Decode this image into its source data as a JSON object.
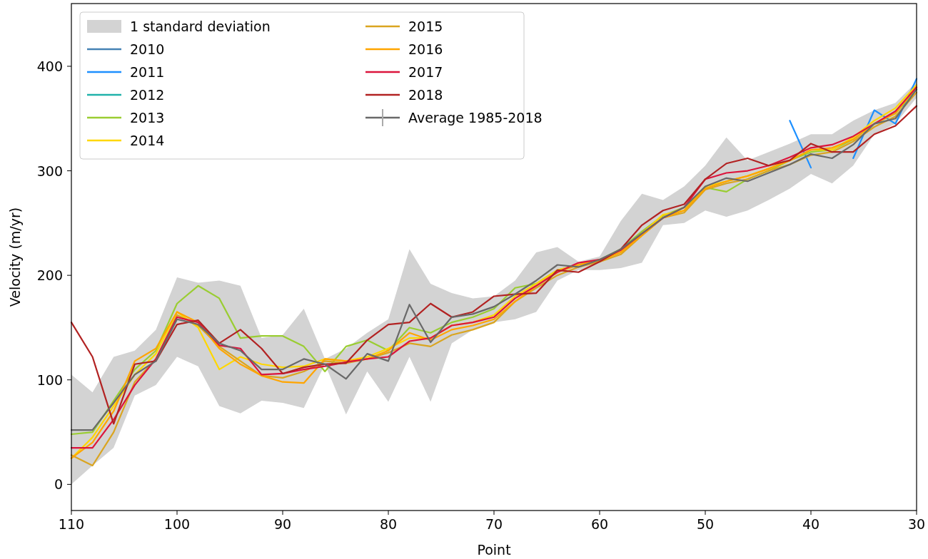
{
  "chart_data": {
    "type": "line",
    "xlabel": "Point",
    "ylabel": "Velocity (m/yr)",
    "xlim": [
      110,
      30
    ],
    "xticks": [
      110,
      100,
      90,
      80,
      70,
      60,
      50,
      40,
      30
    ],
    "ylim": [
      -25,
      460
    ],
    "yticks": [
      0,
      100,
      200,
      300,
      400
    ],
    "legend": "top left",
    "grid": false,
    "annotations": [
      "1 standard deviation"
    ],
    "x": [
      110,
      108,
      106,
      104,
      102,
      100,
      98,
      96,
      94,
      92,
      90,
      88,
      86,
      84,
      82,
      80,
      78,
      76,
      74,
      72,
      70,
      68,
      66,
      64,
      62,
      60,
      58,
      56,
      54,
      52,
      50,
      48,
      46,
      44,
      42,
      40,
      38,
      36,
      34,
      32,
      30
    ],
    "series": [
      {
        "name": "2010",
        "color": "#4682b4",
        "values": [
          null,
          null,
          null,
          null,
          null,
          null,
          null,
          null,
          null,
          null,
          null,
          null,
          null,
          null,
          null,
          null,
          null,
          null,
          null,
          null,
          null,
          null,
          null,
          null,
          null,
          null,
          null,
          null,
          null,
          null,
          null,
          null,
          null,
          null,
          null,
          null,
          null,
          null,
          null,
          null,
          null
        ]
      },
      {
        "name": "2011",
        "color": "#1e90ff",
        "values": [
          null,
          null,
          null,
          null,
          null,
          null,
          null,
          null,
          null,
          null,
          null,
          null,
          null,
          null,
          null,
          null,
          null,
          null,
          null,
          null,
          null,
          null,
          null,
          null,
          null,
          null,
          null,
          null,
          null,
          null,
          null,
          null,
          null,
          null,
          348,
          303,
          null,
          312,
          358,
          345,
          388
        ]
      },
      {
        "name": "2012",
        "color": "#20b2aa",
        "values": [
          null,
          null,
          null,
          null,
          null,
          null,
          null,
          null,
          null,
          null,
          null,
          null,
          null,
          null,
          null,
          null,
          null,
          null,
          null,
          null,
          null,
          null,
          null,
          null,
          null,
          null,
          null,
          null,
          null,
          null,
          null,
          null,
          null,
          null,
          null,
          null,
          null,
          null,
          null,
          null,
          null
        ]
      },
      {
        "name": "2013",
        "color": "#9acd32",
        "values": [
          48,
          50,
          80,
          110,
          128,
          173,
          190,
          178,
          140,
          142,
          142,
          132,
          108,
          132,
          138,
          128,
          150,
          145,
          155,
          160,
          168,
          188,
          192,
          205,
          210,
          215,
          225,
          242,
          257,
          265,
          284,
          280,
          292,
          300,
          310,
          318,
          320,
          330,
          345,
          355,
          378
        ]
      },
      {
        "name": "2014",
        "color": "#ffd700",
        "values": [
          25,
          45,
          75,
          105,
          125,
          165,
          150,
          110,
          122,
          115,
          112,
          113,
          120,
          118,
          122,
          130,
          140,
          140,
          152,
          155,
          162,
          180,
          192,
          205,
          210,
          215,
          222,
          240,
          258,
          262,
          285,
          290,
          295,
          302,
          310,
          320,
          320,
          332,
          348,
          360,
          382
        ]
      },
      {
        "name": "2015",
        "color": "#daa520",
        "values": [
          28,
          18,
          50,
          98,
          120,
          162,
          152,
          132,
          118,
          104,
          102,
          108,
          118,
          116,
          120,
          126,
          135,
          132,
          143,
          148,
          155,
          175,
          188,
          200,
          208,
          213,
          220,
          238,
          255,
          260,
          282,
          288,
          292,
          300,
          306,
          315,
          318,
          328,
          342,
          352,
          375
        ]
      },
      {
        "name": "2016",
        "color": "#ffa500",
        "values": [
          25,
          40,
          70,
          118,
          130,
          165,
          155,
          130,
          115,
          104,
          98,
          97,
          120,
          118,
          120,
          128,
          145,
          138,
          148,
          152,
          158,
          175,
          190,
          203,
          210,
          214,
          222,
          238,
          255,
          262,
          283,
          290,
          295,
          302,
          310,
          320,
          322,
          330,
          345,
          355,
          380
        ]
      },
      {
        "name": "2017",
        "color": "#dc143c",
        "values": [
          35,
          35,
          62,
          95,
          120,
          160,
          155,
          133,
          130,
          105,
          106,
          110,
          113,
          117,
          120,
          122,
          137,
          140,
          152,
          155,
          160,
          178,
          190,
          203,
          212,
          215,
          224,
          240,
          255,
          265,
          292,
          298,
          300,
          305,
          313,
          322,
          325,
          333,
          345,
          357,
          380
        ]
      },
      {
        "name": "2018",
        "color": "#b22222",
        "values": [
          155,
          122,
          58,
          115,
          118,
          153,
          157,
          135,
          148,
          130,
          106,
          112,
          115,
          116,
          138,
          153,
          155,
          173,
          160,
          165,
          180,
          182,
          183,
          205,
          203,
          213,
          225,
          248,
          262,
          268,
          292,
          307,
          312,
          305,
          310,
          326,
          318,
          318,
          335,
          343,
          362
        ]
      },
      {
        "name": "Average 1985-2018",
        "color": "#696969",
        "values": [
          52,
          52,
          78,
          105,
          118,
          158,
          153,
          135,
          128,
          110,
          110,
          120,
          115,
          101,
          125,
          118,
          172,
          136,
          160,
          163,
          170,
          182,
          195,
          210,
          208,
          215,
          225,
          240,
          255,
          265,
          285,
          293,
          290,
          298,
          306,
          316,
          312,
          325,
          345,
          350,
          378
        ],
        "lower": [
          0,
          18,
          35,
          85,
          95,
          122,
          113,
          75,
          68,
          80,
          78,
          73,
          115,
          67,
          108,
          79,
          122,
          79,
          135,
          148,
          155,
          158,
          165,
          195,
          205,
          205,
          207,
          212,
          248,
          250,
          262,
          256,
          262,
          272,
          283,
          297,
          288,
          305,
          335,
          345,
          370
        ],
        "upper": [
          105,
          88,
          122,
          128,
          148,
          198,
          193,
          195,
          190,
          140,
          143,
          168,
          120,
          130,
          145,
          158,
          225,
          192,
          183,
          178,
          180,
          195,
          222,
          227,
          213,
          218,
          252,
          278,
          272,
          285,
          305,
          332,
          310,
          318,
          326,
          335,
          335,
          348,
          358,
          365,
          385
        ]
      }
    ]
  }
}
